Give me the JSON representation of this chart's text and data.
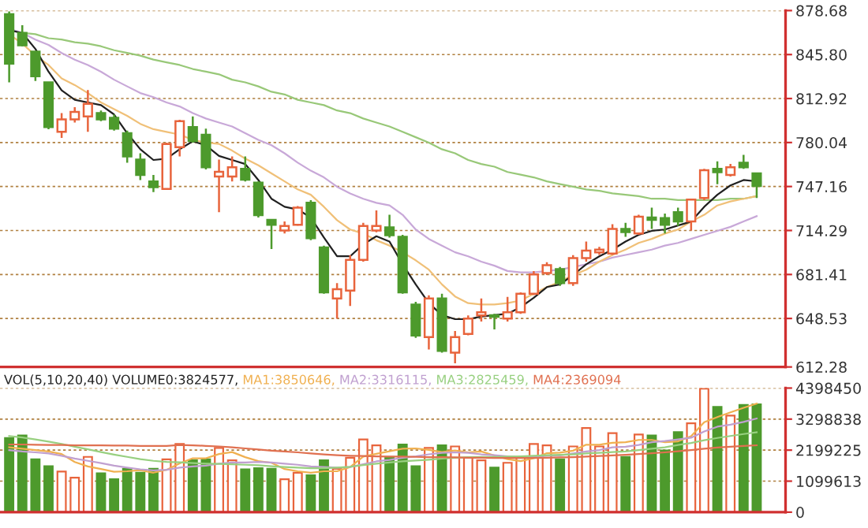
{
  "chart_data": [
    {
      "type": "candlestick",
      "categories": [
        null,
        null,
        null,
        null,
        null,
        null,
        null,
        null,
        null,
        null,
        null,
        null,
        null,
        null,
        null,
        null,
        null,
        null,
        null,
        null,
        null,
        null,
        null,
        null,
        null,
        null,
        null,
        null,
        null,
        null,
        null,
        null,
        null,
        null,
        null,
        null,
        null,
        null,
        null,
        null,
        null,
        null,
        null,
        null,
        null,
        null,
        null,
        null,
        null,
        null,
        null,
        null,
        null,
        null,
        null,
        null,
        null,
        null
      ],
      "ohlc": [
        [
          876,
          878,
          825,
          839
        ],
        [
          862,
          867.7,
          852,
          852.7
        ],
        [
          848,
          848,
          826,
          829.6
        ],
        [
          825,
          825,
          790,
          791.6
        ],
        [
          788.1,
          802,
          783.5,
          797.3
        ],
        [
          797.3,
          806.5,
          795,
          803
        ],
        [
          799.6,
          819.3,
          788,
          808.9
        ],
        [
          802,
          804,
          796,
          797.3
        ],
        [
          798.5,
          801,
          789,
          790.4
        ],
        [
          787,
          789,
          765,
          769.6
        ],
        [
          767.3,
          772,
          752,
          755.8
        ],
        [
          751,
          755.8,
          743,
          746.6
        ],
        [
          745.4,
          780,
          745,
          778.9
        ],
        [
          776.6,
          797,
          769.6,
          796
        ],
        [
          791.6,
          799.6,
          780,
          781.2
        ],
        [
          785.8,
          790.4,
          760,
          761.6
        ],
        [
          754.6,
          767.3,
          728,
          758.1
        ],
        [
          754.6,
          769.6,
          751,
          761.6
        ],
        [
          760.4,
          769.6,
          751,
          752.3
        ],
        [
          750,
          751,
          724,
          725.8
        ],
        [
          722.3,
          722.3,
          700.4,
          718.6
        ],
        [
          714.3,
          721,
          712,
          717.7
        ],
        [
          718.6,
          732.5,
          718,
          731.4
        ],
        [
          735,
          737,
          707,
          708.5
        ],
        [
          701.6,
          703,
          667,
          668.1
        ],
        [
          663.5,
          675,
          648.5,
          670.4
        ],
        [
          669.3,
          695.8,
          657.9,
          692.4
        ],
        [
          692.4,
          720,
          691,
          717.7
        ],
        [
          714.3,
          729.3,
          713,
          717.7
        ],
        [
          716.6,
          726,
          709,
          710.8
        ],
        [
          709.6,
          711,
          667,
          668.1
        ],
        [
          658.9,
          661,
          634,
          635.8
        ],
        [
          634.6,
          665.8,
          625.4,
          663.5
        ],
        [
          663.5,
          667,
          623,
          624.3
        ],
        [
          623,
          639.2,
          615,
          634.6
        ],
        [
          636.9,
          650.8,
          636,
          648.5
        ],
        [
          650.8,
          663.5,
          646.2,
          653.1
        ],
        [
          651,
          652,
          640.4,
          649.7
        ],
        [
          648.5,
          664.7,
          646.2,
          653.1
        ],
        [
          653.1,
          668,
          652,
          667
        ],
        [
          667,
          684,
          666,
          681.4
        ],
        [
          682.5,
          690.6,
          681,
          688.3
        ],
        [
          685.4,
          687,
          672.9,
          675
        ],
        [
          675,
          695.8,
          672.9,
          693.6
        ],
        [
          693.6,
          706,
          691,
          699.3
        ],
        [
          698,
          702,
          696,
          700
        ],
        [
          697,
          719,
          696,
          715.4
        ],
        [
          715.4,
          720,
          709.6,
          713.1
        ],
        [
          712,
          726,
          711,
          724.6
        ],
        [
          724,
          731.4,
          715.4,
          722.3
        ],
        [
          723.5,
          727,
          712,
          718.6
        ],
        [
          728,
          731.4,
          717.7,
          721
        ],
        [
          721,
          737.4,
          714.3,
          737.4
        ],
        [
          738.5,
          760.4,
          737,
          759.3
        ],
        [
          760.4,
          766,
          748.9,
          757.9
        ],
        [
          755.8,
          764,
          754.6,
          761.6
        ],
        [
          765,
          770.8,
          760.4,
          761.6
        ],
        [
          757,
          757,
          738.5,
          747.6
        ]
      ],
      "colors": [
        "#4d9a2c",
        "#4d9a2c",
        "#4d9a2c",
        "#4d9a2c",
        "#e8643c",
        "#e8643c",
        "#e8643c",
        "#4d9a2c",
        "#4d9a2c",
        "#4d9a2c",
        "#4d9a2c",
        "#4d9a2c",
        "#e8643c",
        "#e8643c",
        "#4d9a2c",
        "#4d9a2c",
        "#e8643c",
        "#e8643c",
        "#4d9a2c",
        "#4d9a2c",
        "#4d9a2c",
        "#e8643c",
        "#e8643c",
        "#4d9a2c",
        "#4d9a2c",
        "#e8643c",
        "#e8643c",
        "#e8643c",
        "#e8643c",
        "#4d9a2c",
        "#4d9a2c",
        "#4d9a2c",
        "#e8643c",
        "#4d9a2c",
        "#e8643c",
        "#e8643c",
        "#e8643c",
        "#4d9a2c",
        "#e8643c",
        "#e8643c",
        "#e8643c",
        "#e8643c",
        "#4d9a2c",
        "#e8643c",
        "#e8643c",
        "#e8643c",
        "#e8643c",
        "#4d9a2c",
        "#e8643c",
        "#4d9a2c",
        "#4d9a2c",
        "#4d9a2c",
        "#e8643c",
        "#e8643c",
        "#4d9a2c",
        "#e8643c",
        "#4d9a2c",
        "#4d9a2c"
      ],
      "series": [
        {
          "type": "line",
          "color": "#98c878",
          "values": [
            864,
            862,
            861,
            858,
            857,
            855,
            854,
            852,
            849,
            847,
            845,
            842,
            840,
            838,
            835,
            833,
            831,
            827,
            825,
            822,
            818,
            816,
            812,
            810,
            808,
            804,
            802,
            798,
            795,
            792,
            788,
            784,
            780,
            775,
            772,
            767,
            764,
            762,
            758,
            756,
            754,
            751,
            749,
            747,
            745,
            744,
            742,
            741,
            740,
            738,
            738,
            737,
            737,
            737,
            737,
            738,
            738,
            740
          ]
        },
        {
          "type": "line",
          "color": "#c8a8d8",
          "values": [
            865,
            862,
            857,
            853,
            847,
            842,
            838,
            833,
            827,
            822,
            817,
            814,
            810,
            807,
            802,
            798,
            795,
            792,
            787,
            782,
            778,
            772,
            765,
            759,
            754,
            747,
            742,
            738,
            735,
            733,
            726,
            715,
            708,
            703,
            698,
            695,
            691,
            688,
            684,
            683,
            683,
            684,
            685,
            687,
            689,
            691,
            694,
            696,
            698,
            700,
            703,
            705,
            708,
            711,
            714,
            717,
            721,
            725
          ]
        },
        {
          "type": "line",
          "color": "#f0c078",
          "values": [
            861,
            854,
            845,
            838,
            828,
            823,
            817,
            810,
            805,
            800,
            794,
            790,
            788,
            786,
            782,
            780,
            779,
            774,
            768,
            763,
            757,
            751,
            745,
            741,
            732,
            722,
            715,
            712,
            707,
            703,
            698,
            692,
            685,
            674,
            665,
            660,
            659,
            659,
            660,
            662,
            667,
            672,
            676,
            681,
            685,
            691,
            696,
            700,
            705,
            708,
            712,
            715,
            721,
            726,
            733,
            736,
            738,
            740
          ]
        },
        {
          "type": "line",
          "color": "#202020",
          "values": [
            864,
            862,
            850,
            833,
            819,
            812,
            810,
            808,
            801,
            787,
            775,
            767,
            768,
            775,
            781,
            778,
            770,
            767,
            764,
            752,
            738,
            732,
            730,
            724,
            709,
            695,
            695,
            704,
            710,
            706,
            689,
            674,
            660,
            651,
            648,
            648,
            650,
            651,
            652,
            657,
            664,
            672,
            674,
            681,
            689,
            695,
            700,
            706,
            711,
            714,
            715,
            718,
            721,
            732,
            741,
            748,
            752,
            751
          ]
        }
      ],
      "ylim": [
        612.28,
        878.68
      ],
      "yticks": [
        {
          "value": 612.28,
          "label": "612.28"
        },
        {
          "value": 648.53,
          "label": "648.53"
        },
        {
          "value": 681.41,
          "label": "681.41"
        },
        {
          "value": 714.29,
          "label": "714.29"
        },
        {
          "value": 747.16,
          "label": "747.16"
        },
        {
          "value": 780.04,
          "label": "780.04"
        },
        {
          "value": 812.92,
          "label": "812.92"
        },
        {
          "value": 845.8,
          "label": "845.80"
        },
        {
          "value": 878.68,
          "label": "878.68"
        }
      ],
      "grid": "y",
      "tick_labels": "y"
    },
    {
      "type": "bar",
      "title": "VOL(5,10,20,40) VOLUME0:3824577,",
      "categories": [
        null,
        null,
        null,
        null,
        null,
        null,
        null,
        null,
        null,
        null,
        null,
        null,
        null,
        null,
        null,
        null,
        null,
        null,
        null,
        null,
        null,
        null,
        null,
        null,
        null,
        null,
        null,
        null,
        null,
        null,
        null,
        null,
        null,
        null,
        null,
        null,
        null,
        null,
        null,
        null,
        null,
        null,
        null,
        null,
        null,
        null,
        null,
        null,
        null,
        null,
        null,
        null,
        null,
        null,
        null,
        null,
        null,
        null
      ],
      "series": [
        {
          "values": [
            2630000,
            2720000,
            1870000,
            1630000,
            1440000,
            1220000,
            1960000,
            1380000,
            1170000,
            1540000,
            1400000,
            1540000,
            1870000,
            2420000,
            1840000,
            1870000,
            2280000,
            1840000,
            1520000,
            1560000,
            1540000,
            1170000,
            1400000,
            1310000,
            1840000,
            1540000,
            1930000,
            2580000,
            2370000,
            1960000,
            2400000,
            1630000,
            2280000,
            2370000,
            2330000,
            1930000,
            1840000,
            1580000,
            1750000,
            1930000,
            2420000,
            2370000,
            1870000,
            2330000,
            2980000,
            2330000,
            2800000,
            1960000,
            2750000,
            2720000,
            2190000,
            2840000,
            3150000,
            4380000,
            3730000,
            3420000,
            3800000,
            3820000
          ],
          "colors": [
            "#4d9a2c",
            "#4d9a2c",
            "#4d9a2c",
            "#4d9a2c",
            "#e8643c",
            "#e8643c",
            "#e8643c",
            "#4d9a2c",
            "#4d9a2c",
            "#4d9a2c",
            "#4d9a2c",
            "#4d9a2c",
            "#e8643c",
            "#e8643c",
            "#4d9a2c",
            "#4d9a2c",
            "#e8643c",
            "#e8643c",
            "#4d9a2c",
            "#4d9a2c",
            "#4d9a2c",
            "#e8643c",
            "#e8643c",
            "#4d9a2c",
            "#4d9a2c",
            "#e8643c",
            "#e8643c",
            "#e8643c",
            "#e8643c",
            "#4d9a2c",
            "#4d9a2c",
            "#4d9a2c",
            "#e8643c",
            "#4d9a2c",
            "#e8643c",
            "#e8643c",
            "#e8643c",
            "#4d9a2c",
            "#e8643c",
            "#e8643c",
            "#e8643c",
            "#e8643c",
            "#4d9a2c",
            "#e8643c",
            "#e8643c",
            "#e8643c",
            "#e8643c",
            "#4d9a2c",
            "#e8643c",
            "#4d9a2c",
            "#4d9a2c",
            "#4d9a2c",
            "#e8643c",
            "#e8643c",
            "#4d9a2c",
            "#e8643c",
            "#4d9a2c",
            "#4d9a2c"
          ],
          "type": "bar"
        },
        {
          "type": "line",
          "name": "MA1:3850646,",
          "color": "#f0b050",
          "values": [
            2300000,
            2250000,
            2200000,
            2150000,
            2060000,
            1780000,
            1620000,
            1530000,
            1430000,
            1450000,
            1490000,
            1400000,
            1500000,
            1730000,
            1910000,
            1910000,
            2060000,
            2130000,
            1950000,
            1810000,
            1750000,
            1530000,
            1450000,
            1400000,
            1450000,
            1450000,
            1600000,
            1970000,
            2070000,
            2160000,
            2250000,
            2260000,
            2210000,
            2130000,
            2190000,
            2120000,
            2150000,
            2010000,
            1880000,
            1810000,
            1910000,
            2090000,
            2110000,
            2180000,
            2390000,
            2390000,
            2460000,
            2480000,
            2560000,
            2560000,
            2480000,
            2510000,
            2690000,
            3190000,
            3370000,
            3540000,
            3700000,
            3850000
          ]
        },
        {
          "type": "line",
          "name": "MA2:3316115,",
          "color": "#c0a0d0",
          "values": [
            2200000,
            2150000,
            2120000,
            2080000,
            2000000,
            1900000,
            1820000,
            1740000,
            1650000,
            1580000,
            1520000,
            1480000,
            1500000,
            1580000,
            1620000,
            1650000,
            1720000,
            1760000,
            1760000,
            1780000,
            1760000,
            1720000,
            1680000,
            1620000,
            1600000,
            1580000,
            1600000,
            1700000,
            1800000,
            1850000,
            1930000,
            1980000,
            2050000,
            2100000,
            2120000,
            2100000,
            2050000,
            2020000,
            1980000,
            1950000,
            1960000,
            2000000,
            2010000,
            2080000,
            2150000,
            2200000,
            2300000,
            2320000,
            2380000,
            2480000,
            2520000,
            2580000,
            2640000,
            2860000,
            3030000,
            3100000,
            3200000,
            3320000
          ]
        },
        {
          "type": "line",
          "name": "MA3:2825459,",
          "color": "#98d080",
          "values": [
            2700000,
            2650000,
            2580000,
            2500000,
            2420000,
            2320000,
            2230000,
            2130000,
            2040000,
            1960000,
            1880000,
            1820000,
            1780000,
            1770000,
            1740000,
            1720000,
            1710000,
            1700000,
            1680000,
            1660000,
            1630000,
            1600000,
            1580000,
            1560000,
            1560000,
            1580000,
            1610000,
            1670000,
            1720000,
            1760000,
            1800000,
            1830000,
            1860000,
            1900000,
            1930000,
            1950000,
            1960000,
            1960000,
            1970000,
            1980000,
            2000000,
            2020000,
            2030000,
            2050000,
            2080000,
            2100000,
            2130000,
            2150000,
            2200000,
            2250000,
            2300000,
            2380000,
            2450000,
            2550000,
            2630000,
            2700000,
            2770000,
            2830000
          ]
        },
        {
          "type": "line",
          "name": "MA4:2369094",
          "color": "#e07050",
          "values": [
            2400000,
            2400000,
            2390000,
            2380000,
            2380000,
            2370000,
            2370000,
            2370000,
            2360000,
            2360000,
            2350000,
            2350000,
            2350000,
            2380000,
            2370000,
            2350000,
            2330000,
            2300000,
            2260000,
            2220000,
            2180000,
            2150000,
            2120000,
            2080000,
            2050000,
            2020000,
            2000000,
            1990000,
            1980000,
            1970000,
            1970000,
            1960000,
            1950000,
            1950000,
            1940000,
            1930000,
            1930000,
            1920000,
            1920000,
            1920000,
            1920000,
            1930000,
            1940000,
            1950000,
            1970000,
            1990000,
            2010000,
            2030000,
            2060000,
            2090000,
            2120000,
            2160000,
            2200000,
            2250000,
            2290000,
            2320000,
            2350000,
            2370000
          ]
        }
      ],
      "ylim": [
        0,
        4398450
      ],
      "yticks": [
        0,
        1099613,
        2199225,
        3298838,
        4398450
      ],
      "grid": "y",
      "tick_labels": "y",
      "legend": "top"
    }
  ]
}
